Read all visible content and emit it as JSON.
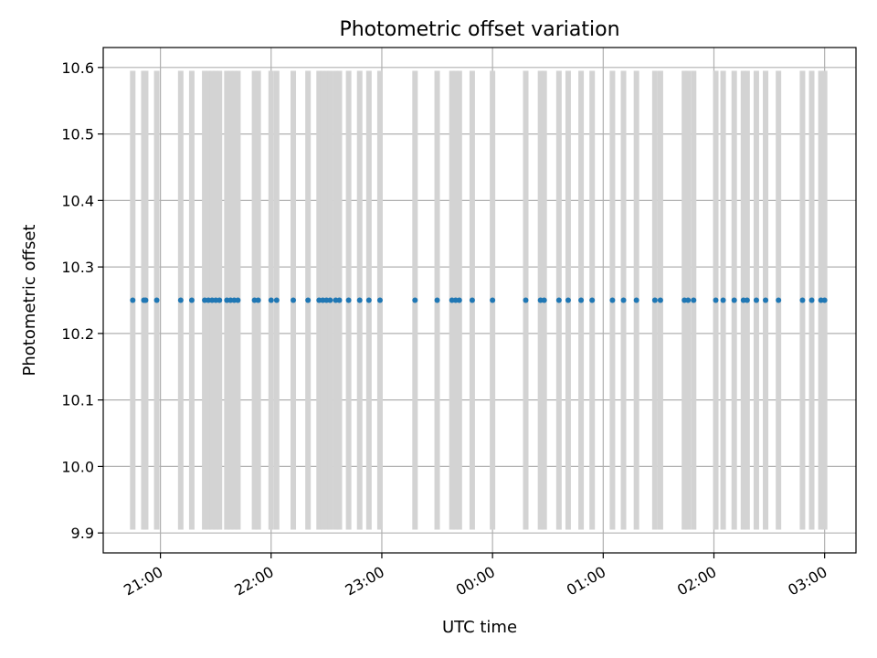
{
  "chart_data": {
    "type": "scatter",
    "title": "Photometric offset variation",
    "xlabel": "UTC time",
    "ylabel": "Photometric offset",
    "x_axis": {
      "unit": "minutes since 20:00 UTC",
      "range": [
        29,
        437
      ],
      "ticks": [
        {
          "value": 60,
          "label": "21:00"
        },
        {
          "value": 120,
          "label": "22:00"
        },
        {
          "value": 180,
          "label": "23:00"
        },
        {
          "value": 240,
          "label": "00:00"
        },
        {
          "value": 300,
          "label": "01:00"
        },
        {
          "value": 360,
          "label": "02:00"
        },
        {
          "value": 420,
          "label": "03:00"
        }
      ]
    },
    "y_axis": {
      "range": [
        9.87,
        10.63
      ],
      "ticks": [
        {
          "value": 9.9,
          "label": "9.9"
        },
        {
          "value": 10.0,
          "label": "10.0"
        },
        {
          "value": 10.1,
          "label": "10.1"
        },
        {
          "value": 10.2,
          "label": "10.2"
        },
        {
          "value": 10.3,
          "label": "10.3"
        },
        {
          "value": 10.4,
          "label": "10.4"
        },
        {
          "value": 10.5,
          "label": "10.5"
        },
        {
          "value": 10.6,
          "label": "10.6"
        }
      ]
    },
    "grid": true,
    "band_range": [
      9.905,
      10.595
    ],
    "band_color": "#d3d3d3",
    "point_color": "#1f77b4",
    "points": [
      {
        "x": 45,
        "y": 10.25
      },
      {
        "x": 51,
        "y": 10.25
      },
      {
        "x": 52,
        "y": 10.25
      },
      {
        "x": 58,
        "y": 10.25
      },
      {
        "x": 71,
        "y": 10.25
      },
      {
        "x": 77,
        "y": 10.25
      },
      {
        "x": 84,
        "y": 10.25
      },
      {
        "x": 86,
        "y": 10.25
      },
      {
        "x": 88,
        "y": 10.25
      },
      {
        "x": 90,
        "y": 10.25
      },
      {
        "x": 92,
        "y": 10.25
      },
      {
        "x": 96,
        "y": 10.25
      },
      {
        "x": 98,
        "y": 10.25
      },
      {
        "x": 100,
        "y": 10.25
      },
      {
        "x": 102,
        "y": 10.25
      },
      {
        "x": 111,
        "y": 10.25
      },
      {
        "x": 113,
        "y": 10.25
      },
      {
        "x": 120,
        "y": 10.25
      },
      {
        "x": 123,
        "y": 10.25
      },
      {
        "x": 132,
        "y": 10.25
      },
      {
        "x": 140,
        "y": 10.25
      },
      {
        "x": 146,
        "y": 10.25
      },
      {
        "x": 148,
        "y": 10.25
      },
      {
        "x": 150,
        "y": 10.25
      },
      {
        "x": 152,
        "y": 10.25
      },
      {
        "x": 155,
        "y": 10.25
      },
      {
        "x": 157,
        "y": 10.25
      },
      {
        "x": 162,
        "y": 10.25
      },
      {
        "x": 168,
        "y": 10.25
      },
      {
        "x": 173,
        "y": 10.25
      },
      {
        "x": 179,
        "y": 10.25
      },
      {
        "x": 198,
        "y": 10.25
      },
      {
        "x": 210,
        "y": 10.25
      },
      {
        "x": 218,
        "y": 10.25
      },
      {
        "x": 220,
        "y": 10.25
      },
      {
        "x": 222,
        "y": 10.25
      },
      {
        "x": 229,
        "y": 10.25
      },
      {
        "x": 240,
        "y": 10.25
      },
      {
        "x": 258,
        "y": 10.25
      },
      {
        "x": 266,
        "y": 10.25
      },
      {
        "x": 268,
        "y": 10.25
      },
      {
        "x": 276,
        "y": 10.25
      },
      {
        "x": 281,
        "y": 10.25
      },
      {
        "x": 288,
        "y": 10.25
      },
      {
        "x": 294,
        "y": 10.25
      },
      {
        "x": 305,
        "y": 10.25
      },
      {
        "x": 311,
        "y": 10.25
      },
      {
        "x": 318,
        "y": 10.25
      },
      {
        "x": 328,
        "y": 10.25
      },
      {
        "x": 331,
        "y": 10.25
      },
      {
        "x": 344,
        "y": 10.25
      },
      {
        "x": 346,
        "y": 10.25
      },
      {
        "x": 349,
        "y": 10.25
      },
      {
        "x": 361,
        "y": 10.25
      },
      {
        "x": 365,
        "y": 10.25
      },
      {
        "x": 371,
        "y": 10.25
      },
      {
        "x": 376,
        "y": 10.25
      },
      {
        "x": 378,
        "y": 10.25
      },
      {
        "x": 383,
        "y": 10.25
      },
      {
        "x": 388,
        "y": 10.25
      },
      {
        "x": 395,
        "y": 10.25
      },
      {
        "x": 408,
        "y": 10.25
      },
      {
        "x": 413,
        "y": 10.25
      },
      {
        "x": 418,
        "y": 10.25
      },
      {
        "x": 420,
        "y": 10.25
      }
    ],
    "bands_x": [
      45,
      51,
      52,
      58,
      71,
      77,
      84,
      86,
      88,
      90,
      92,
      96,
      98,
      100,
      102,
      111,
      113,
      120,
      123,
      132,
      140,
      146,
      148,
      150,
      152,
      155,
      157,
      162,
      168,
      173,
      179,
      198,
      210,
      218,
      220,
      222,
      229,
      240,
      258,
      266,
      268,
      276,
      281,
      288,
      294,
      305,
      311,
      318,
      328,
      331,
      344,
      346,
      349,
      361,
      365,
      371,
      376,
      378,
      383,
      388,
      395,
      408,
      413,
      418,
      420
    ]
  }
}
